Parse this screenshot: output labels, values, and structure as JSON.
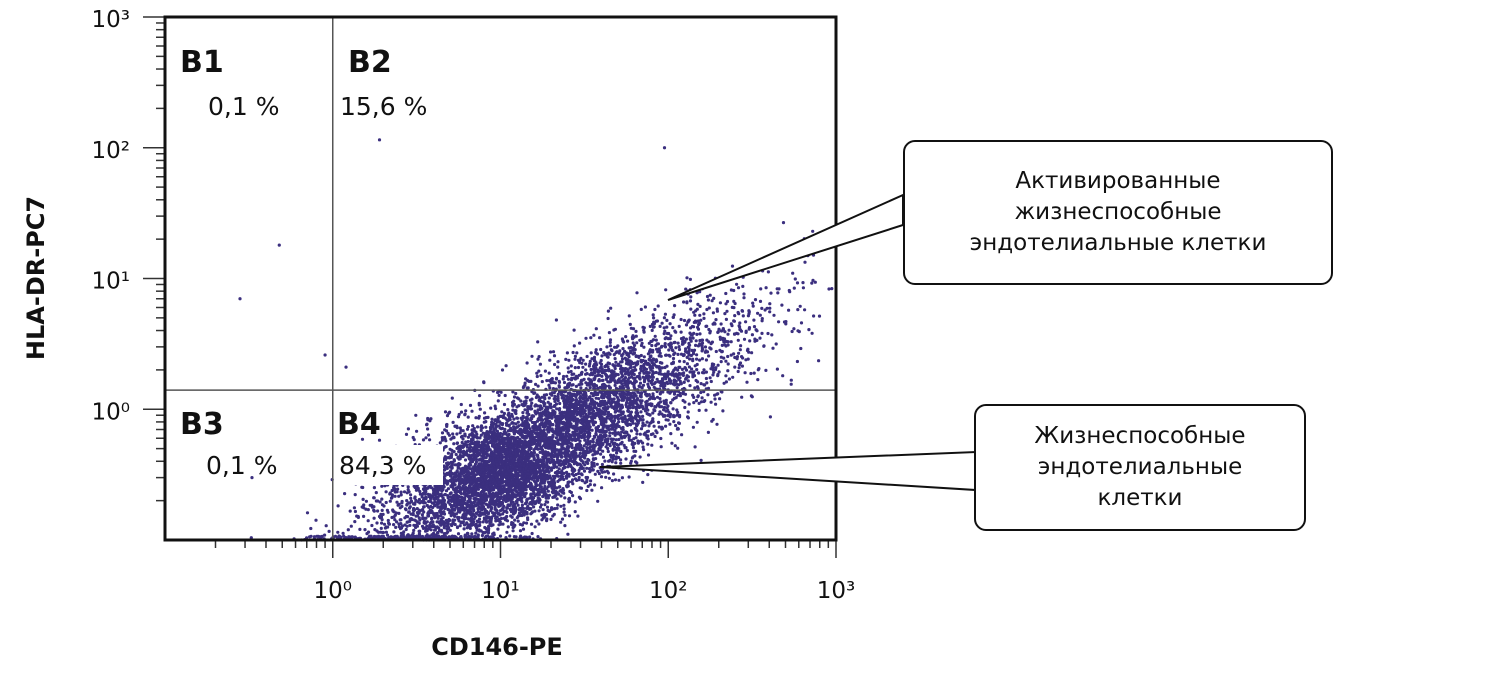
{
  "chart_data": {
    "type": "scatter",
    "title": "",
    "xlabel": "CD146-PE",
    "ylabel": "HLA-DR-PC7",
    "xscale": "log",
    "yscale": "log",
    "xlim": [
      0.1,
      1000
    ],
    "ylim": [
      0.1,
      1000
    ],
    "x_tick_labels": [
      "10⁰",
      "10¹",
      "10²",
      "10³"
    ],
    "x_tick_values": [
      1,
      10,
      100,
      1000
    ],
    "y_tick_labels": [
      "10³",
      "10²",
      "10¹",
      "10⁰"
    ],
    "y_tick_values": [
      1000,
      100,
      10,
      1
    ],
    "quadrant_gates": {
      "x": 1,
      "y": 1.4
    },
    "quadrants": [
      {
        "label": "B1",
        "percent": "0,1 %"
      },
      {
        "label": "B2",
        "percent": "15,6 %"
      },
      {
        "label": "B3",
        "percent": "0,1 %"
      },
      {
        "label": "B4",
        "percent": "84,3 %"
      }
    ],
    "population": {
      "color": "#3b2f7f",
      "n_points": 7000,
      "center_log10": [
        1.15,
        -0.35
      ],
      "major_axis_log10": [
        1,
        0.8
      ],
      "sd_major": 0.5,
      "sd_minor": 0.2
    },
    "outliers": [
      [
        1.9,
        115
      ],
      [
        0.28,
        7
      ],
      [
        0.48,
        18
      ],
      [
        0.9,
        2.6
      ],
      [
        95,
        100
      ],
      [
        1.2,
        2.1
      ],
      [
        0.33,
        0.3
      ]
    ],
    "annotations": [
      {
        "text": [
          "Активированные",
          "жизнеспособные",
          "эндотелиальные клетки"
        ],
        "points_to": [
          100,
          7
        ]
      },
      {
        "text": [
          "Жизнеспособные",
          "эндотелиальные",
          "клетки"
        ],
        "points_to": [
          40,
          0.35
        ]
      }
    ]
  }
}
